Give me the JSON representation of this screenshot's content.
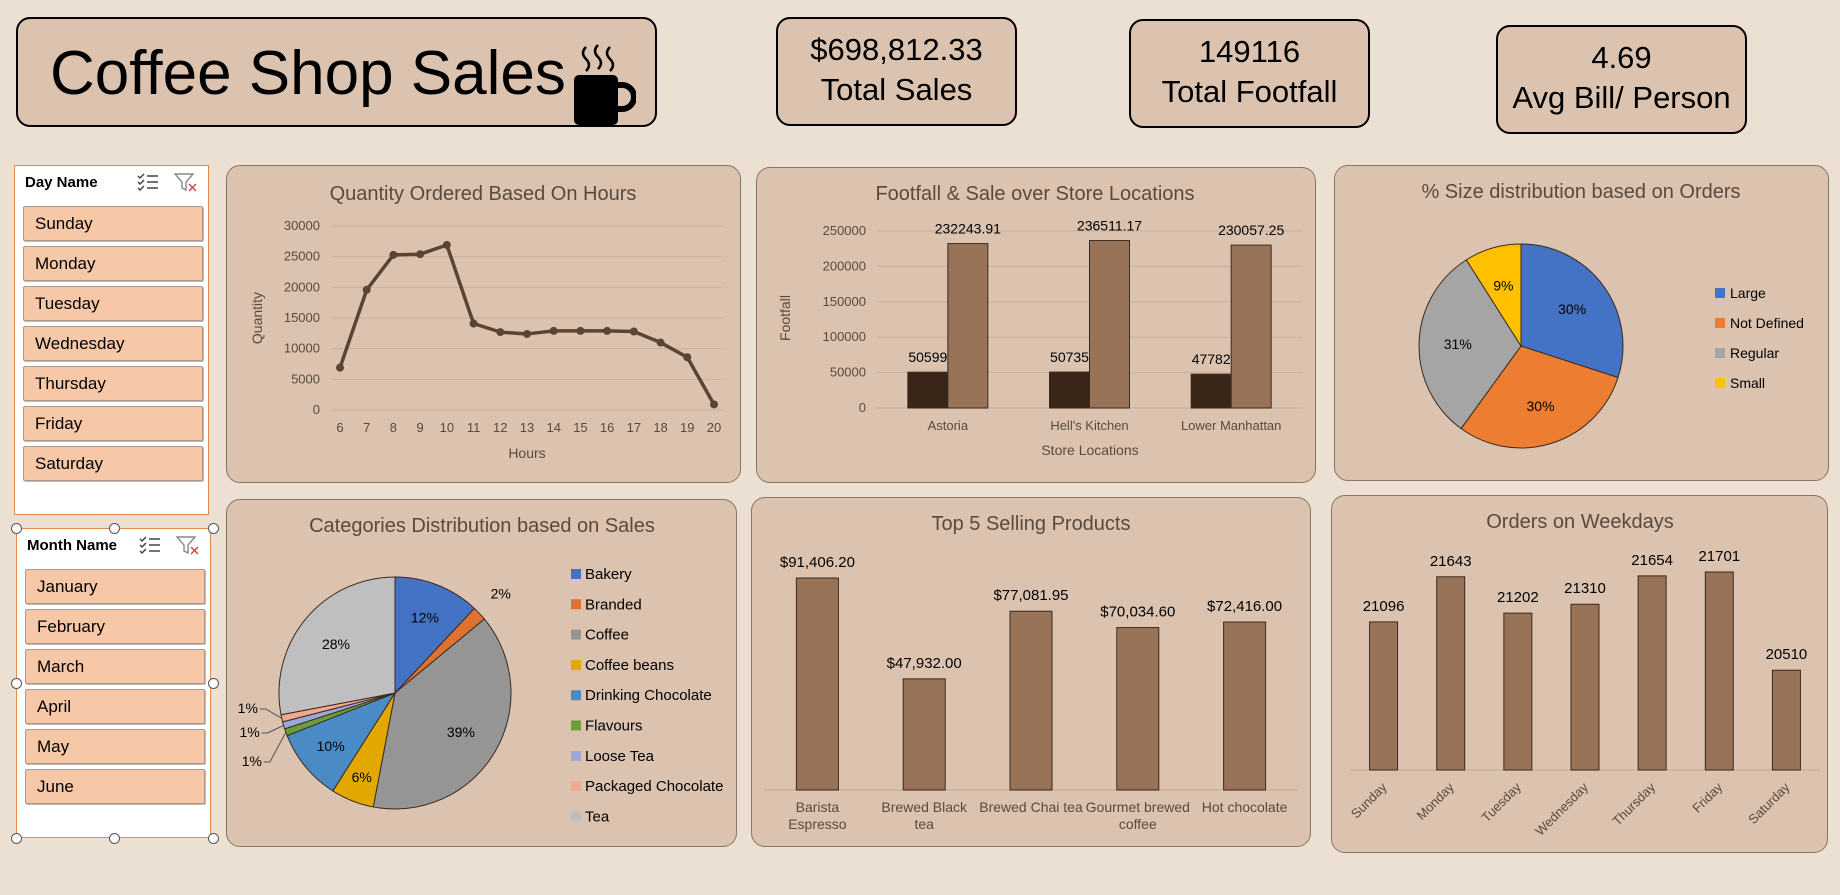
{
  "title": "Coffee Shop Sales",
  "kpis": [
    {
      "value": "$698,812.33",
      "label": "Total Sales"
    },
    {
      "value": "149116",
      "label": "Total Footfall"
    },
    {
      "value": "4.69",
      "label": "Avg Bill/ Person"
    }
  ],
  "day_slicer": {
    "header": "Day Name",
    "items": [
      "Sunday",
      "Monday",
      "Tuesday",
      "Wednesday",
      "Thursday",
      "Friday",
      "Saturday"
    ]
  },
  "month_slicer": {
    "header": "Month Name",
    "items": [
      "January",
      "February",
      "March",
      "April",
      "May",
      "June"
    ]
  },
  "colors": {
    "brown": "#987358",
    "dark": "#3a2618",
    "line": "#5c4433",
    "blue": "#4472c4",
    "orange": "#ed7d31",
    "gray": "#a5a5a5",
    "yellow": "#ffc000"
  },
  "chart_data": [
    {
      "type": "line",
      "title": "Quantity Ordered Based On Hours",
      "xlabel": "Hours",
      "ylabel": "Quantity",
      "x": [
        "6",
        "7",
        "8",
        "9",
        "10",
        "11",
        "12",
        "13",
        "14",
        "15",
        "16",
        "17",
        "18",
        "19",
        "20"
      ],
      "values": [
        6900,
        19600,
        25300,
        25400,
        26900,
        14100,
        12700,
        12400,
        12900,
        12900,
        12900,
        12800,
        11000,
        8600,
        900
      ],
      "yticks": [
        "0",
        "5000",
        "10000",
        "15000",
        "20000",
        "25000",
        "30000"
      ],
      "ylim": [
        0,
        30000
      ]
    },
    {
      "type": "bar",
      "title": "Footfall & Sale over Store Locations",
      "xlabel": "Store Locations",
      "ylabel": "Footfall",
      "categories": [
        "Astoria",
        "Hell's Kitchen",
        "Lower Manhattan"
      ],
      "series": [
        {
          "values": [
            50599,
            50735,
            47782
          ],
          "labels": [
            "50599",
            "50735",
            "47782"
          ]
        },
        {
          "values": [
            232243.91,
            236511.17,
            230057.25
          ],
          "labels": [
            "232243.91",
            "236511.17",
            "230057.25"
          ]
        }
      ],
      "yticks": [
        "0",
        "50000",
        "100000",
        "150000",
        "200000",
        "250000"
      ],
      "ylim": [
        0,
        250000
      ]
    },
    {
      "type": "pie",
      "title": "% Size distribution based on Orders",
      "legend": [
        "Large",
        "Not Defined",
        "Regular",
        "Small"
      ],
      "values": [
        30,
        30,
        31,
        9
      ],
      "labels": [
        "30%",
        "30%",
        "31%",
        "9%"
      ],
      "legend_position": "right"
    },
    {
      "type": "pie",
      "title": "Categories Distribution based on Sales",
      "legend": [
        "Bakery",
        "Branded",
        "Coffee",
        "Coffee beans",
        "Drinking Chocolate",
        "Flavours",
        "Loose Tea",
        "Packaged Chocolate",
        "Tea"
      ],
      "values": [
        12,
        2,
        39,
        6,
        10,
        1,
        1,
        1,
        28
      ],
      "labels": [
        "12%",
        "2%",
        "39%",
        "6%",
        "10%",
        "1%",
        "1%",
        "1%",
        "28%"
      ],
      "legend_position": "right"
    },
    {
      "type": "bar",
      "title": "Top 5 Selling Products",
      "categories": [
        "Barista Espresso",
        "Brewed Black tea",
        "Brewed Chai tea",
        "Gourmet brewed coffee",
        "Hot chocolate"
      ],
      "values": [
        91406.2,
        47932.0,
        77081.95,
        70034.6,
        72416.0
      ],
      "labels": [
        "$91,406.20",
        "$47,932.00",
        "$77,081.95",
        "$70,034.60",
        "$72,416.00"
      ]
    },
    {
      "type": "bar",
      "title": "Orders on Weekdays",
      "categories": [
        "Sunday",
        "Monday",
        "Tuesday",
        "Wednesday",
        "Thursday",
        "Friday",
        "Saturday"
      ],
      "values": [
        21096,
        21643,
        21202,
        21310,
        21654,
        21701,
        20510
      ],
      "labels": [
        "21096",
        "21643",
        "21202",
        "21310",
        "21654",
        "21701",
        "20510"
      ]
    }
  ]
}
